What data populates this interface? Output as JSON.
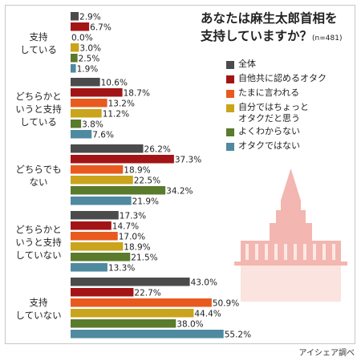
{
  "title_line1": "あなたは麻生太郎首相を",
  "title_line2": "支持していますか？",
  "sample": "(n=481)",
  "credit": "アイシェア調べ",
  "colors": [
    "#4b4b4b",
    "#a31416",
    "#e85a1e",
    "#c9a41c",
    "#5a7a2c",
    "#4f8aa0"
  ],
  "chart_data": {
    "type": "bar",
    "orientation": "horizontal",
    "unit": "%",
    "categories": [
      "支持\nしている",
      "どちらかと\nいうと支持\nしている",
      "どちらでも\nない",
      "どちらかと\nいうと支持\nしていない",
      "支持\nしていない"
    ],
    "series": [
      {
        "name": "全体",
        "values": [
          2.9,
          10.6,
          26.2,
          17.3,
          43.0
        ]
      },
      {
        "name": "自他共に認めるオタク",
        "values": [
          6.7,
          18.7,
          37.3,
          14.7,
          22.7
        ]
      },
      {
        "name": "たまに言われる",
        "values": [
          0.0,
          13.2,
          18.9,
          17.0,
          50.9
        ]
      },
      {
        "name": "自分ではちょっと\nオタクだと思う",
        "values": [
          3.0,
          11.2,
          22.5,
          18.9,
          44.4
        ]
      },
      {
        "name": "よくわからない",
        "values": [
          2.5,
          3.8,
          34.2,
          21.5,
          38.0
        ]
      },
      {
        "name": "オタクではない",
        "values": [
          1.9,
          7.6,
          21.9,
          13.3,
          55.2
        ]
      }
    ],
    "labels": [
      [
        "2.9%",
        "10.6%",
        "26.2%",
        "17.3%",
        "43.0%"
      ],
      [
        "6.7%",
        "18.7%",
        "37.3%",
        "14.7%",
        "22.7%"
      ],
      [
        "0.0%",
        "13.2%",
        "18.9%",
        "17.0%",
        "50.9%"
      ],
      [
        "3.0%",
        "11.2%",
        "22.5%",
        "18.9%",
        "44.4%"
      ],
      [
        "2.5%",
        "3.8%",
        "34.2%",
        "21.5%",
        "38.0%"
      ],
      [
        "1.9%",
        "7.6%",
        "21.9%",
        "13.3%",
        "55.2%"
      ]
    ],
    "xlim": [
      0,
      60
    ],
    "legend_position": "right",
    "grid": false
  }
}
